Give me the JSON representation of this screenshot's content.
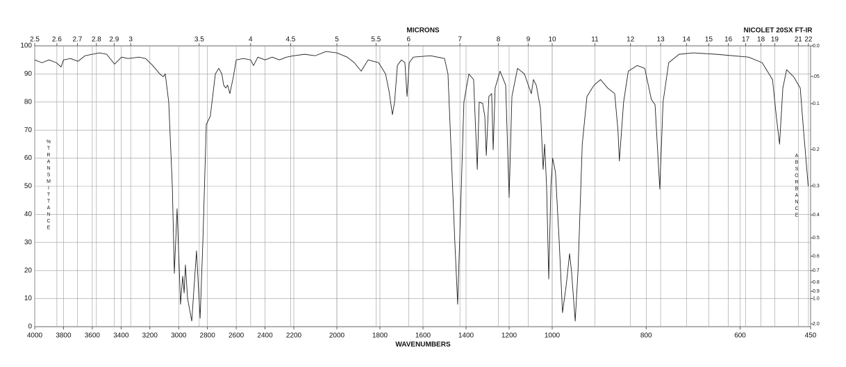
{
  "chart_data": {
    "type": "line",
    "title": "NICOLET 20SX FT-IR",
    "x_label": "WAVENUMBERS",
    "x2_label": "MICRONS",
    "y_label": "%TRANSMITTANCE",
    "y2_label": "ABSORBANCE",
    "color": "#222222",
    "grid": true,
    "xlim": [
      4000,
      450
    ],
    "x_scale_breaks": [
      2200,
      1000
    ],
    "ylim": [
      0,
      100
    ],
    "yticks": [
      0,
      10,
      20,
      30,
      40,
      50,
      60,
      70,
      80,
      90,
      100
    ],
    "xticks": [
      4000,
      3800,
      3600,
      3400,
      3200,
      3000,
      2800,
      2600,
      2400,
      2200,
      2000,
      1800,
      1600,
      1400,
      1200,
      1000,
      800,
      600,
      450
    ],
    "x2ticks": [
      2.5,
      2.6,
      2.7,
      2.8,
      2.9,
      3,
      3.5,
      4,
      4.5,
      5,
      5.5,
      6,
      7,
      8,
      9,
      10,
      11,
      12,
      13,
      14,
      15,
      16,
      17,
      18,
      19,
      21,
      22
    ],
    "y2ticks": [
      {
        "value": 0,
        "label": "0.0"
      },
      {
        "value": 0.05,
        "label": ".05"
      },
      0.1,
      0.2,
      0.3,
      0.4,
      0.5,
      0.6,
      0.7,
      0.8,
      0.9,
      {
        "value": 1,
        "label": "1.0"
      },
      {
        "value": 2,
        "label": "2.0"
      }
    ],
    "x": [
      4000,
      3950,
      3900,
      3850,
      3817,
      3800,
      3750,
      3700,
      3650,
      3600,
      3550,
      3500,
      3445,
      3397,
      3350,
      3276,
      3230,
      3180,
      3131,
      3107,
      3093,
      3069,
      3044,
      3030,
      3011,
      2987,
      2972,
      2962,
      2953,
      2938,
      2909,
      2876,
      2851,
      2832,
      2808,
      2780,
      2745,
      2721,
      2700,
      2687,
      2673,
      2660,
      2644,
      2620,
      2600,
      2550,
      2500,
      2480,
      2450,
      2400,
      2350,
      2300,
      2250,
      2200,
      2150,
      2100,
      2050,
      2000,
      1952,
      1919,
      1887,
      1871,
      1855,
      1806,
      1774,
      1758,
      1742,
      1732,
      1719,
      1700,
      1684,
      1674,
      1664,
      1645,
      1565,
      1500,
      1484,
      1468,
      1452,
      1439,
      1426,
      1410,
      1387,
      1365,
      1348,
      1339,
      1323,
      1313,
      1306,
      1294,
      1281,
      1274,
      1265,
      1242,
      1216,
      1200,
      1187,
      1161,
      1129,
      1097,
      1087,
      1074,
      1055,
      1042,
      1035,
      1026,
      1016,
      1006,
      999,
      993,
      985,
      978,
      970,
      963,
      959,
      951,
      945,
      936,
      926,
      911,
      897,
      882,
      867,
      860,
      857,
      848,
      838,
      819,
      803,
      789,
      781,
      771,
      764,
      752,
      730,
      700,
      650,
      582,
      553,
      531,
      523,
      516,
      509,
      501,
      486,
      472,
      465,
      455
    ],
    "values": [
      95,
      94,
      95,
      94,
      92.5,
      95,
      95.5,
      94.5,
      96.5,
      97,
      97.5,
      97,
      93.5,
      96,
      95.5,
      96,
      95.5,
      93,
      90,
      89,
      90,
      80,
      50,
      19,
      42,
      8,
      18,
      12,
      22,
      10,
      2,
      27,
      3,
      30,
      72,
      75,
      90,
      92,
      90,
      86,
      85,
      86,
      83,
      89,
      95,
      95.5,
      95,
      93,
      96,
      95,
      96,
      95,
      96,
      96.5,
      97,
      96.5,
      98,
      97.5,
      96,
      94,
      91,
      93,
      95,
      94,
      90,
      84,
      75.5,
      80,
      93,
      95,
      94,
      82,
      94,
      96,
      96.5,
      95.5,
      90,
      60,
      30,
      8,
      40,
      80,
      90,
      88,
      56,
      80,
      79.5,
      75,
      61,
      82,
      83,
      63,
      85,
      91,
      86,
      46,
      82,
      92,
      90,
      83,
      88,
      86,
      78,
      56,
      65,
      50,
      17,
      50,
      60,
      55,
      30,
      5,
      15,
      26,
      20,
      2,
      20,
      65,
      82,
      86,
      88,
      85,
      83,
      70,
      59,
      80,
      91,
      93,
      92,
      81,
      79,
      49,
      80,
      94,
      97,
      97.5,
      97,
      96,
      94,
      88,
      75,
      65,
      85,
      91.5,
      89,
      85,
      70,
      50
    ]
  }
}
